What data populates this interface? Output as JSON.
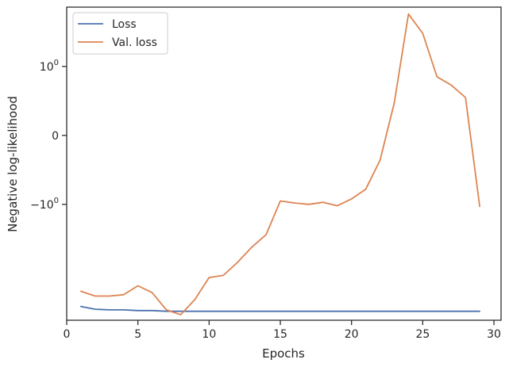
{
  "chart_data": {
    "type": "line",
    "xlabel": "Epochs",
    "ylabel": "Negative log-likelihood",
    "xlim": [
      0,
      30.5
    ],
    "yscale": "symlog",
    "x_ticks": [
      0,
      5,
      10,
      15,
      20,
      25,
      30
    ],
    "y_ticks": [
      {
        "value": 1,
        "label": "10",
        "sup": "0"
      },
      {
        "value": 0,
        "label": "0",
        "sup": ""
      },
      {
        "value": -1,
        "label": "−10",
        "sup": "0"
      }
    ],
    "grid": false,
    "legend": "upper-left",
    "x": [
      1,
      2,
      3,
      4,
      5,
      6,
      7,
      8,
      9,
      10,
      11,
      12,
      13,
      14,
      15,
      16,
      17,
      18,
      19,
      20,
      21,
      22,
      23,
      24,
      25,
      26,
      27,
      28,
      29
    ],
    "series": [
      {
        "name": "Loss",
        "color": "#4c72b0",
        "values": [
          -2.48,
          -2.52,
          -2.53,
          -2.53,
          -2.54,
          -2.54,
          -2.55,
          -2.55,
          -2.55,
          -2.55,
          -2.55,
          -2.55,
          -2.55,
          -2.55,
          -2.55,
          -2.55,
          -2.55,
          -2.55,
          -2.55,
          -2.55,
          -2.55,
          -2.55,
          -2.55,
          -2.55,
          -2.55,
          -2.55,
          -2.55,
          -2.55,
          -2.55
        ]
      },
      {
        "name": "Val. loss",
        "color": "#dd8452",
        "values": [
          -2.26,
          -2.33,
          -2.33,
          -2.31,
          -2.18,
          -2.28,
          -2.53,
          -2.6,
          -2.38,
          -2.06,
          -2.03,
          -1.84,
          -1.62,
          -1.44,
          -0.95,
          -0.98,
          -1.0,
          -0.97,
          -1.02,
          -0.92,
          -0.78,
          -0.36,
          0.47,
          1.76,
          1.48,
          0.85,
          0.73,
          0.55,
          -1.03
        ]
      }
    ]
  }
}
